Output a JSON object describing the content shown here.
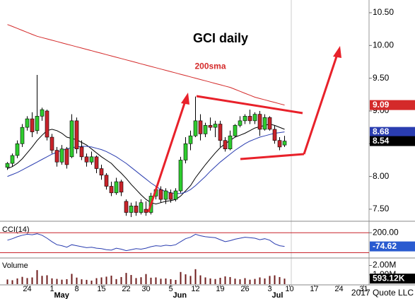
{
  "chart_data": [
    {
      "type": "candlestick",
      "title": "GCI daily",
      "xlim": [
        -1.5,
        73.07
      ],
      "ylim": [
        7.327,
        10.694
      ],
      "categories": [
        null,
        null,
        null,
        null,
        null,
        null,
        null,
        null,
        null,
        null,
        null,
        null,
        null,
        null,
        null,
        null,
        null,
        null,
        null,
        null,
        null,
        null,
        null,
        null,
        null,
        null,
        null,
        null,
        null,
        null,
        null,
        null,
        null,
        null,
        null,
        null,
        null,
        null,
        null,
        null,
        null,
        null,
        null,
        null,
        null,
        null,
        null,
        null,
        null,
        null,
        null,
        null,
        null,
        null,
        null,
        null,
        null
      ],
      "open": [
        8.14,
        8.2,
        8.32,
        8.5,
        8.75,
        8.88,
        8.7,
        8.92,
        9.0,
        8.6,
        8.4,
        8.22,
        8.42,
        8.3,
        8.85,
        8.45,
        8.3,
        8.22,
        8.3,
        8.12,
        8.02,
        7.85,
        7.75,
        7.92,
        7.62,
        7.45,
        7.55,
        7.45,
        7.5,
        7.45,
        7.7,
        7.8,
        7.65,
        7.75,
        7.65,
        7.78,
        8.25,
        8.5,
        8.62,
        8.85,
        8.65,
        8.78,
        8.75,
        8.8,
        8.55,
        8.42,
        8.62,
        8.78,
        8.85,
        8.92,
        8.85,
        8.95,
        8.72,
        8.9,
        8.72,
        8.55,
        8.48
      ],
      "high": [
        8.22,
        8.35,
        8.55,
        8.8,
        8.92,
        8.98,
        9.55,
        9.05,
        9.02,
        8.65,
        8.45,
        8.48,
        8.45,
        8.95,
        8.9,
        8.55,
        8.35,
        8.38,
        8.32,
        8.18,
        8.05,
        7.92,
        7.98,
        7.95,
        7.65,
        7.6,
        7.62,
        7.65,
        7.62,
        7.75,
        7.85,
        7.85,
        7.82,
        7.8,
        7.82,
        8.3,
        8.6,
        8.7,
        9.22,
        8.95,
        8.82,
        8.9,
        8.85,
        8.85,
        8.6,
        8.7,
        8.8,
        8.92,
        8.95,
        9.02,
        8.98,
        9.0,
        8.95,
        8.92,
        8.78,
        8.6,
        8.62
      ],
      "low": [
        8.1,
        8.15,
        8.28,
        8.45,
        8.7,
        8.6,
        8.65,
        8.85,
        8.55,
        8.35,
        8.15,
        8.18,
        8.12,
        8.28,
        8.35,
        8.25,
        8.15,
        8.18,
        8.05,
        7.95,
        7.8,
        7.7,
        7.72,
        7.7,
        7.4,
        7.38,
        7.4,
        7.42,
        7.4,
        7.42,
        7.65,
        7.6,
        7.58,
        7.6,
        7.62,
        7.75,
        8.2,
        8.4,
        8.6,
        8.55,
        8.6,
        8.7,
        8.6,
        8.45,
        8.38,
        8.4,
        8.6,
        8.75,
        8.8,
        8.8,
        8.8,
        8.62,
        8.7,
        8.7,
        8.5,
        8.4,
        8.45
      ],
      "close": [
        8.2,
        8.32,
        8.5,
        8.75,
        8.88,
        8.68,
        8.92,
        9.02,
        8.6,
        8.4,
        8.22,
        8.42,
        8.18,
        8.85,
        8.42,
        8.3,
        8.22,
        8.3,
        8.12,
        8.02,
        7.85,
        7.75,
        7.92,
        7.76,
        7.45,
        7.55,
        7.45,
        7.6,
        7.45,
        7.7,
        7.8,
        7.65,
        7.78,
        7.65,
        7.78,
        8.25,
        8.5,
        8.62,
        8.85,
        8.65,
        8.78,
        8.75,
        8.8,
        8.55,
        8.42,
        8.62,
        8.78,
        8.85,
        8.92,
        8.85,
        8.95,
        8.72,
        8.9,
        8.72,
        8.55,
        8.45,
        8.54
      ],
      "up_color": "#2ecc2e",
      "down_color": "#c8232a",
      "close_box_color": "#000000",
      "series": [
        {
          "name": "200sma",
          "color": "#d42a2a",
          "value_box": true,
          "values": [
            10.32,
            10.29,
            10.26,
            10.23,
            10.2,
            10.17,
            10.14,
            10.12,
            10.1,
            10.08,
            10.06,
            10.04,
            10.02,
            10.0,
            9.98,
            9.96,
            9.94,
            9.92,
            9.9,
            9.88,
            9.86,
            9.84,
            9.82,
            9.8,
            9.78,
            9.76,
            9.74,
            9.72,
            9.7,
            9.68,
            9.66,
            9.64,
            9.62,
            9.6,
            9.58,
            9.56,
            9.54,
            9.52,
            9.5,
            9.48,
            9.46,
            9.44,
            9.42,
            9.4,
            9.38,
            9.36,
            9.33,
            9.3,
            9.27,
            9.24,
            9.21,
            9.19,
            9.17,
            9.15,
            9.13,
            9.11,
            9.09
          ]
        },
        {
          "color": "#000000",
          "value_box": false,
          "values": [
            8.12,
            8.15,
            8.2,
            8.27,
            8.36,
            8.45,
            8.55,
            8.63,
            8.7,
            8.72,
            8.7,
            8.66,
            8.6,
            8.58,
            8.56,
            8.52,
            8.48,
            8.42,
            8.36,
            8.3,
            8.25,
            8.2,
            8.12,
            8.05,
            7.97,
            7.88,
            7.8,
            7.72,
            7.65,
            7.6,
            7.58,
            7.6,
            7.62,
            7.63,
            7.65,
            7.7,
            7.78,
            7.86,
            7.98,
            8.08,
            8.18,
            8.27,
            8.36,
            8.44,
            8.5,
            8.55,
            8.6,
            8.63,
            8.66,
            8.7,
            8.74,
            8.76,
            8.78,
            8.8,
            8.78,
            8.75,
            8.72
          ]
        },
        {
          "color": "#2a3db0",
          "value_box": true,
          "values": [
            8.0,
            8.03,
            8.06,
            8.1,
            8.14,
            8.18,
            8.22,
            8.26,
            8.3,
            8.34,
            8.37,
            8.4,
            8.42,
            8.44,
            8.45,
            8.46,
            8.46,
            8.45,
            8.43,
            8.41,
            8.38,
            8.34,
            8.3,
            8.25,
            8.2,
            8.14,
            8.08,
            8.02,
            7.96,
            7.9,
            7.85,
            7.8,
            7.77,
            7.75,
            7.74,
            7.74,
            7.76,
            7.8,
            7.86,
            7.93,
            8.0,
            8.08,
            8.15,
            8.22,
            8.28,
            8.34,
            8.4,
            8.45,
            8.5,
            8.54,
            8.57,
            8.6,
            8.62,
            8.64,
            8.66,
            8.67,
            8.68
          ]
        }
      ],
      "yticks": [
        {
          "value": 10.5,
          "label": "10.50"
        },
        {
          "value": 10.0,
          "label": "10.00"
        },
        {
          "value": 9.5,
          "label": "9.50"
        },
        {
          "value": 9.0,
          "label": "9.00"
        },
        {
          "value": 8.5,
          "label": "8.50"
        },
        {
          "value": 8.0,
          "label": "8.00"
        },
        {
          "value": 7.5,
          "label": "7.50"
        }
      ]
    },
    {
      "type": "line",
      "title": "CCI(14)",
      "xlim": [
        -1.5,
        73.07
      ],
      "ylim": [
        -293,
        402
      ],
      "color": "#2a3db0",
      "box_color": "#2a5bd0",
      "reference_lines": [
        200,
        -200
      ],
      "reference_color": "#c8232a",
      "yticks": [
        {
          "value": 200,
          "label": "200.00"
        }
      ],
      "values": [
        50,
        80,
        120,
        150,
        170,
        160,
        180,
        150,
        90,
        20,
        -40,
        -60,
        -90,
        -40,
        -60,
        -80,
        -100,
        -90,
        -110,
        -120,
        -140,
        -150,
        -110,
        -130,
        -160,
        -140,
        -120,
        -130,
        -110,
        -80,
        -60,
        -70,
        -50,
        -60,
        -40,
        20,
        80,
        110,
        170,
        140,
        120,
        110,
        100,
        60,
        20,
        40,
        70,
        90,
        110,
        100,
        90,
        60,
        80,
        50,
        -20,
        -60,
        -74.62
      ]
    },
    {
      "type": "bar",
      "title": "Volume",
      "xlim": [
        -1.5,
        73.07
      ],
      "ylim": [
        0,
        2720000
      ],
      "color": "#6e1c1c",
      "box_color": "#000000",
      "credit": "2017 Quote LLC",
      "yticks": [
        {
          "value": 2000000,
          "label": "2.00M"
        },
        {
          "value": 1000000,
          "label": "1.00M"
        }
      ],
      "values": [
        500000,
        420000,
        610000,
        780000,
        650000,
        720000,
        1500000,
        890000,
        950000,
        620000,
        560000,
        480000,
        530000,
        1100000,
        700000,
        520000,
        460000,
        380000,
        640000,
        720000,
        800000,
        910000,
        540000,
        760000,
        1200000,
        980000,
        650000,
        740000,
        1080000,
        690000,
        720000,
        580000,
        610000,
        530000,
        450000,
        1300000,
        1050000,
        880000,
        1600000,
        940000,
        720000,
        610000,
        550000,
        680000,
        830000,
        760000,
        590000,
        520000,
        640000,
        480000,
        560000,
        720000,
        610000,
        880000,
        940000,
        760000,
        593120
      ],
      "value_labels": [
        null,
        null,
        null,
        null,
        null,
        null,
        null,
        null,
        null,
        null,
        null,
        null,
        null,
        null,
        null,
        null,
        null,
        null,
        null,
        null,
        null,
        null,
        null,
        null,
        null,
        null,
        null,
        null,
        null,
        null,
        null,
        null,
        null,
        null,
        null,
        null,
        null,
        null,
        null,
        null,
        null,
        null,
        null,
        null,
        null,
        null,
        null,
        null,
        null,
        null,
        null,
        null,
        null,
        null,
        null,
        null,
        "593.12K"
      ],
      "xticks": [
        {
          "value": 4,
          "label": "24"
        },
        {
          "value": 9,
          "label": "1"
        },
        {
          "value": 14,
          "label": "8"
        },
        {
          "value": 19,
          "label": "15"
        },
        {
          "value": 24,
          "label": "22"
        },
        {
          "value": 28,
          "label": "30"
        },
        {
          "value": 33,
          "label": "5"
        },
        {
          "value": 38,
          "label": "12"
        },
        {
          "value": 43,
          "label": "19"
        },
        {
          "value": 48,
          "label": "26"
        },
        {
          "value": 53,
          "label": "3"
        },
        {
          "value": 57,
          "label": "10"
        },
        {
          "value": 62,
          "label": "17"
        },
        {
          "value": 67,
          "label": "24"
        },
        {
          "value": 72,
          "label": "31"
        }
      ],
      "month_labels": [
        {
          "value": 9,
          "label": "May"
        },
        {
          "value": 33,
          "label": "Jun"
        },
        {
          "value": 53,
          "label": "Jul"
        }
      ]
    }
  ]
}
